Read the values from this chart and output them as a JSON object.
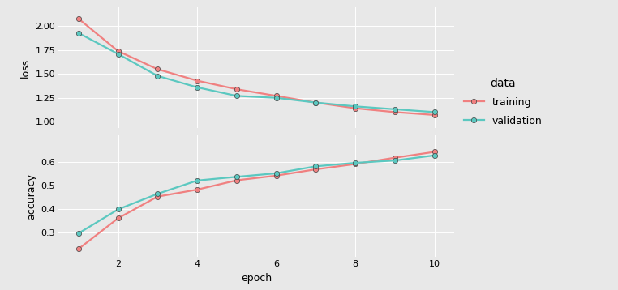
{
  "epochs": [
    1,
    2,
    3,
    4,
    5,
    6,
    7,
    8,
    9,
    10
  ],
  "loss_training": [
    2.08,
    1.74,
    1.55,
    1.43,
    1.34,
    1.27,
    1.2,
    1.14,
    1.1,
    1.07
  ],
  "loss_validation": [
    1.93,
    1.71,
    1.48,
    1.36,
    1.27,
    1.25,
    1.2,
    1.16,
    1.13,
    1.1
  ],
  "acc_training": [
    0.228,
    0.36,
    0.453,
    0.483,
    0.523,
    0.543,
    0.57,
    0.593,
    0.62,
    0.645
  ],
  "acc_validation": [
    0.295,
    0.398,
    0.465,
    0.522,
    0.538,
    0.553,
    0.583,
    0.598,
    0.608,
    0.63
  ],
  "color_training": "#F08080",
  "color_validation": "#5BC8C0",
  "bg_panel": "#E8E8E8",
  "bg_outer": "#E8E8E8",
  "bg_strip": "#D3D3D3",
  "grid_color": "#FFFFFF",
  "linewidth": 1.6,
  "markersize": 4.5,
  "marker": "o",
  "loss_yticks": [
    1.0,
    1.25,
    1.5,
    1.75,
    2.0
  ],
  "acc_yticks": [
    0.3,
    0.4,
    0.5,
    0.6
  ],
  "xticks": [
    2,
    4,
    6,
    8,
    10
  ],
  "xlabel": "epoch",
  "loss_ylabel": "loss",
  "acc_ylabel": "accuracy",
  "legend_title": "data",
  "legend_training": "training",
  "legend_validation": "validation",
  "label_fontsize": 9,
  "tick_fontsize": 8,
  "legend_fontsize": 9,
  "legend_title_fontsize": 10
}
